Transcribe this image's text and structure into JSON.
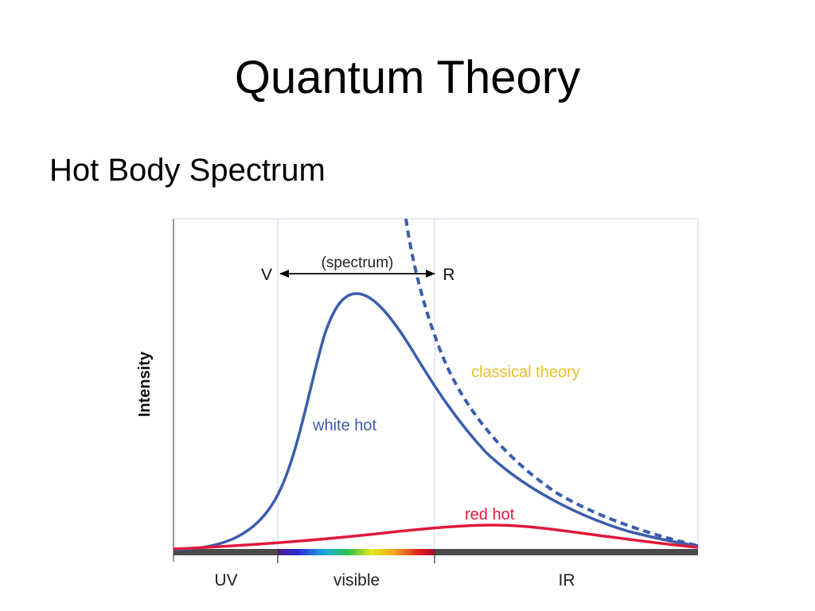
{
  "title": "Quantum Theory",
  "subtitle": "Hot Body Spectrum",
  "diagram": {
    "y_axis_label": "Intensity",
    "spectrum_label": "(spectrum)",
    "v_label": "V",
    "r_label": "R",
    "curve_labels": {
      "classical": "classical theory",
      "white_hot": "white hot",
      "red_hot": "red hot"
    },
    "band_labels": {
      "uv": "UV",
      "visible": "visible",
      "ir": "IR"
    },
    "colors": {
      "white_hot": "#3b5cad",
      "classical": "#3b5cad",
      "red_hot": "#e0193a",
      "classical_label": "#e6c02a",
      "guide_lines": "#c8d4ea",
      "axis_bar": "#4a4a4a"
    }
  }
}
